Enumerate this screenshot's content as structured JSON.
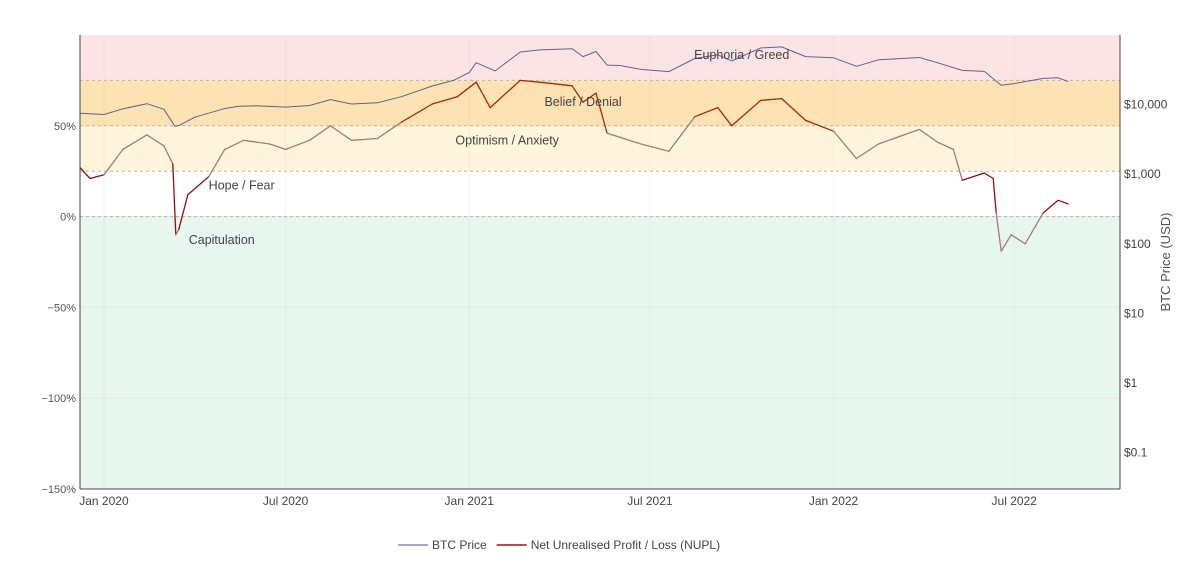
{
  "chart_data": {
    "type": "line",
    "y2label": "BTC Price (USD)",
    "y_left": {
      "range": [
        -150,
        100
      ],
      "ticks": [
        50,
        0,
        -50,
        -100,
        -150
      ],
      "tick_labels": [
        "50%",
        "0%",
        "−50%",
        "−100%",
        "−150%"
      ]
    },
    "y_right": {
      "scale": "log",
      "range": [
        0.03,
        100000
      ],
      "ticks": [
        0.1,
        1,
        10,
        100,
        1000,
        10000
      ],
      "tick_labels": [
        "$0.1",
        "$1",
        "$10",
        "$100",
        "$1,000",
        "$10,000"
      ]
    },
    "x_axis": {
      "range": [
        "2019-12-08",
        "2022-10-15"
      ],
      "ticks": [
        "2020-01-01",
        "2020-07-01",
        "2021-01-01",
        "2021-07-01",
        "2022-01-01",
        "2022-07-01"
      ],
      "tick_labels": [
        "Jan 2020",
        "Jul 2020",
        "Jan 2021",
        "Jul 2021",
        "Jan 2022",
        "Jul 2022"
      ]
    },
    "zones": [
      {
        "label": "Euphoria / Greed",
        "from": 75,
        "to": 100,
        "color": "#fde4e4"
      },
      {
        "label": "Belief / Denial",
        "from": 50,
        "to": 75,
        "color": "#fde2b3"
      },
      {
        "label": "Optimism / Anxiety",
        "from": 25,
        "to": 50,
        "color": "#fff4dc"
      },
      {
        "label": "Hope / Fear",
        "from": 0,
        "to": 25,
        "color": "#ffffff"
      },
      {
        "label": "Capitulation",
        "from": -150,
        "to": 0,
        "color": "#e7f7ef"
      }
    ],
    "legend_position": "bottom",
    "legend": [
      "BTC Price",
      "Net Unrealised Profit / Loss (NUPL)"
    ],
    "series": [
      {
        "name": "BTC Price",
        "axis": "right",
        "color": "#4a5588",
        "points": [
          [
            "2019-12-08",
            7500
          ],
          [
            "2020-01-01",
            7200
          ],
          [
            "2020-01-20",
            8700
          ],
          [
            "2020-02-13",
            10300
          ],
          [
            "2020-03-01",
            8600
          ],
          [
            "2020-03-12",
            4900
          ],
          [
            "2020-03-16",
            5000
          ],
          [
            "2020-04-01",
            6600
          ],
          [
            "2020-04-30",
            8700
          ],
          [
            "2020-05-15",
            9500
          ],
          [
            "2020-06-01",
            9600
          ],
          [
            "2020-07-01",
            9200
          ],
          [
            "2020-07-25",
            9700
          ],
          [
            "2020-08-15",
            11800
          ],
          [
            "2020-09-05",
            10200
          ],
          [
            "2020-10-01",
            10600
          ],
          [
            "2020-10-25",
            13000
          ],
          [
            "2020-11-25",
            18500
          ],
          [
            "2020-12-17",
            22500
          ],
          [
            "2021-01-01",
            29000
          ],
          [
            "2021-01-08",
            40000
          ],
          [
            "2021-01-27",
            30500
          ],
          [
            "2021-02-21",
            57000
          ],
          [
            "2021-03-13",
            61000
          ],
          [
            "2021-04-14",
            63500
          ],
          [
            "2021-04-25",
            49000
          ],
          [
            "2021-05-08",
            58000
          ],
          [
            "2021-05-19",
            37000
          ],
          [
            "2021-06-01",
            36500
          ],
          [
            "2021-06-22",
            32000
          ],
          [
            "2021-07-20",
            29800
          ],
          [
            "2021-08-15",
            46000
          ],
          [
            "2021-09-07",
            52000
          ],
          [
            "2021-09-21",
            42500
          ],
          [
            "2021-10-20",
            65000
          ],
          [
            "2021-11-10",
            67500
          ],
          [
            "2021-12-04",
            49000
          ],
          [
            "2022-01-01",
            47000
          ],
          [
            "2022-01-24",
            35500
          ],
          [
            "2022-02-15",
            44000
          ],
          [
            "2022-03-28",
            47500
          ],
          [
            "2022-04-15",
            40000
          ],
          [
            "2022-05-10",
            31000
          ],
          [
            "2022-06-01",
            30000
          ],
          [
            "2022-06-18",
            19000
          ],
          [
            "2022-07-01",
            20000
          ],
          [
            "2022-07-30",
            23800
          ],
          [
            "2022-08-14",
            24300
          ],
          [
            "2022-08-24",
            21500
          ]
        ]
      },
      {
        "name": "Net Unrealised Profit / Loss (NUPL)",
        "axis": "left",
        "color": "#8b1a10",
        "points": [
          [
            "2019-12-08",
            27
          ],
          [
            "2019-12-18",
            21
          ],
          [
            "2020-01-01",
            23
          ],
          [
            "2020-01-20",
            37
          ],
          [
            "2020-02-13",
            45
          ],
          [
            "2020-03-01",
            39
          ],
          [
            "2020-03-10",
            29
          ],
          [
            "2020-03-13",
            -10
          ],
          [
            "2020-03-16",
            -7
          ],
          [
            "2020-03-25",
            12
          ],
          [
            "2020-04-15",
            22
          ],
          [
            "2020-05-01",
            37
          ],
          [
            "2020-05-20",
            42
          ],
          [
            "2020-06-15",
            40
          ],
          [
            "2020-07-01",
            37
          ],
          [
            "2020-07-25",
            42
          ],
          [
            "2020-08-15",
            50
          ],
          [
            "2020-09-05",
            42
          ],
          [
            "2020-10-01",
            43
          ],
          [
            "2020-10-25",
            52
          ],
          [
            "2020-11-25",
            62
          ],
          [
            "2020-12-20",
            66
          ],
          [
            "2021-01-08",
            74
          ],
          [
            "2021-01-22",
            60
          ],
          [
            "2021-02-21",
            75
          ],
          [
            "2021-03-13",
            74
          ],
          [
            "2021-04-14",
            72
          ],
          [
            "2021-04-25",
            63
          ],
          [
            "2021-05-08",
            68
          ],
          [
            "2021-05-19",
            46
          ],
          [
            "2021-06-22",
            40
          ],
          [
            "2021-07-20",
            36
          ],
          [
            "2021-08-15",
            55
          ],
          [
            "2021-09-07",
            60
          ],
          [
            "2021-09-21",
            50
          ],
          [
            "2021-10-20",
            64
          ],
          [
            "2021-11-10",
            65
          ],
          [
            "2021-12-04",
            53
          ],
          [
            "2022-01-01",
            47
          ],
          [
            "2022-01-24",
            32
          ],
          [
            "2022-02-15",
            40
          ],
          [
            "2022-03-28",
            48
          ],
          [
            "2022-04-15",
            41
          ],
          [
            "2022-05-01",
            37
          ],
          [
            "2022-05-10",
            20
          ],
          [
            "2022-06-01",
            24
          ],
          [
            "2022-06-10",
            21
          ],
          [
            "2022-06-13",
            2
          ],
          [
            "2022-06-18",
            -19
          ],
          [
            "2022-06-28",
            -10
          ],
          [
            "2022-07-12",
            -15
          ],
          [
            "2022-07-30",
            2
          ],
          [
            "2022-08-14",
            9
          ],
          [
            "2022-08-24",
            7
          ]
        ]
      }
    ]
  }
}
